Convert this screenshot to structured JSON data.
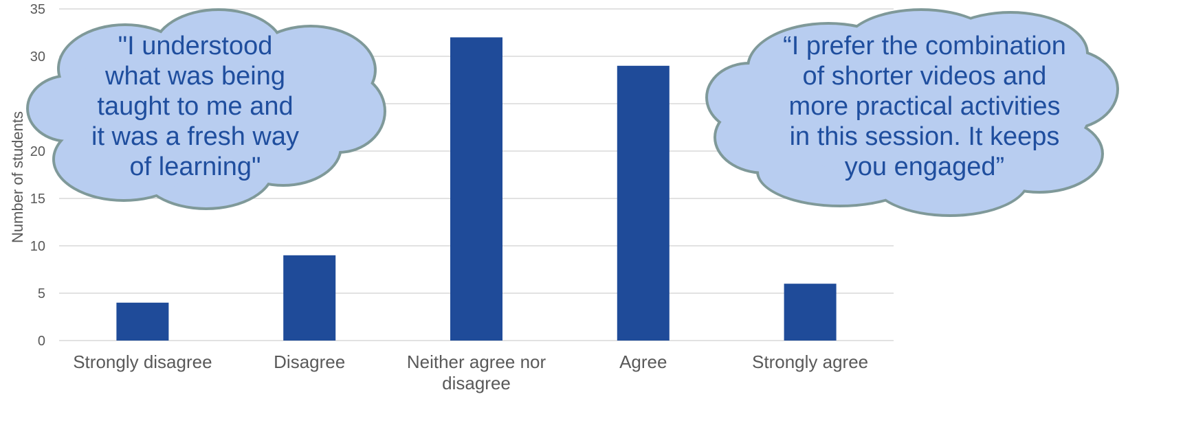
{
  "chart_data": {
    "type": "bar",
    "categories": [
      "Strongly disagree",
      "Disagree",
      "Neither agree nor disagree",
      "Agree",
      "Strongly agree"
    ],
    "category_lines": [
      [
        "Strongly disagree"
      ],
      [
        "Disagree"
      ],
      [
        "Neither agree nor",
        "disagree"
      ],
      [
        "Agree"
      ],
      [
        "Strongly agree"
      ]
    ],
    "values": [
      4,
      9,
      32,
      29,
      6
    ],
    "title": "",
    "xlabel": "",
    "ylabel": "Number of students",
    "ylim": [
      0,
      35
    ],
    "yticks": [
      0,
      5,
      10,
      15,
      20,
      25,
      30,
      35
    ],
    "grid": true,
    "bar_color": "#1f4b99",
    "annotations": [
      {
        "kind": "thought-cloud",
        "lines": [
          "\"I understood",
          "what was being",
          "taught to me and",
          "it was a fresh way",
          "of learning\""
        ]
      },
      {
        "kind": "thought-cloud",
        "lines": [
          "“I prefer the combination",
          "of shorter videos and",
          "more practical activities",
          "in this session. It keeps",
          "you engaged”"
        ]
      }
    ]
  },
  "colors": {
    "bar": "#1f4b99",
    "grid": "#d9d9d9",
    "cloud_fill": "#b8cdf0",
    "cloud_stroke": "#7f9999",
    "cloud_text": "#1f4e9e"
  }
}
